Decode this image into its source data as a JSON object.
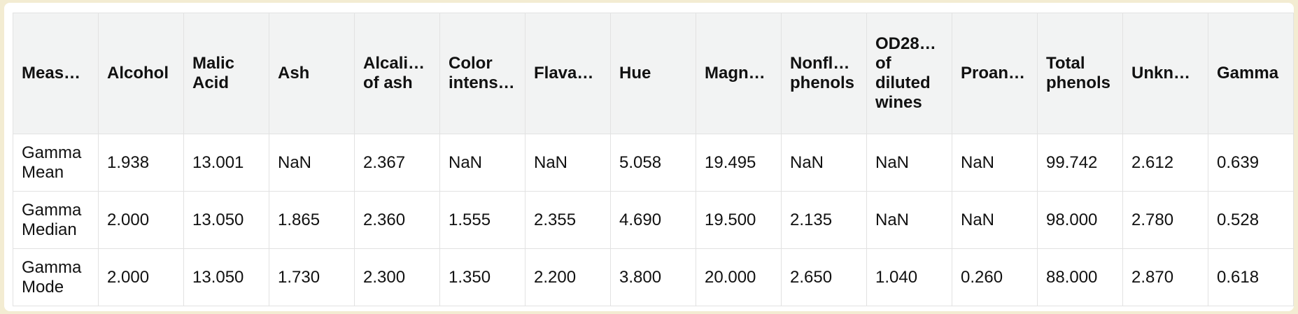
{
  "table": {
    "headers": [
      "Meas…",
      "Alcohol",
      "Malic Acid",
      "Ash",
      "Alcali… of ash",
      "Color intens…",
      "Flava…",
      "Hue",
      "Magn…",
      "Nonfl… phenols",
      "OD28… of diluted wines",
      "Proan…",
      "Total phenols",
      "Unkn…",
      "Gamma"
    ],
    "rows": [
      [
        "Gamma Mean",
        "1.938",
        "13.001",
        "NaN",
        "2.367",
        "NaN",
        "NaN",
        "5.058",
        "19.495",
        "NaN",
        "NaN",
        "NaN",
        "99.742",
        "2.612",
        "0.639"
      ],
      [
        "Gamma Median",
        "2.000",
        "13.050",
        "1.865",
        "2.360",
        "1.555",
        "2.355",
        "4.690",
        "19.500",
        "2.135",
        "NaN",
        "NaN",
        "98.000",
        "2.780",
        "0.528"
      ],
      [
        "Gamma Mode",
        "2.000",
        "13.050",
        "1.730",
        "2.300",
        "1.350",
        "2.200",
        "3.800",
        "20.000",
        "2.650",
        "1.040",
        "0.260",
        "88.000",
        "2.870",
        "0.618"
      ]
    ]
  }
}
